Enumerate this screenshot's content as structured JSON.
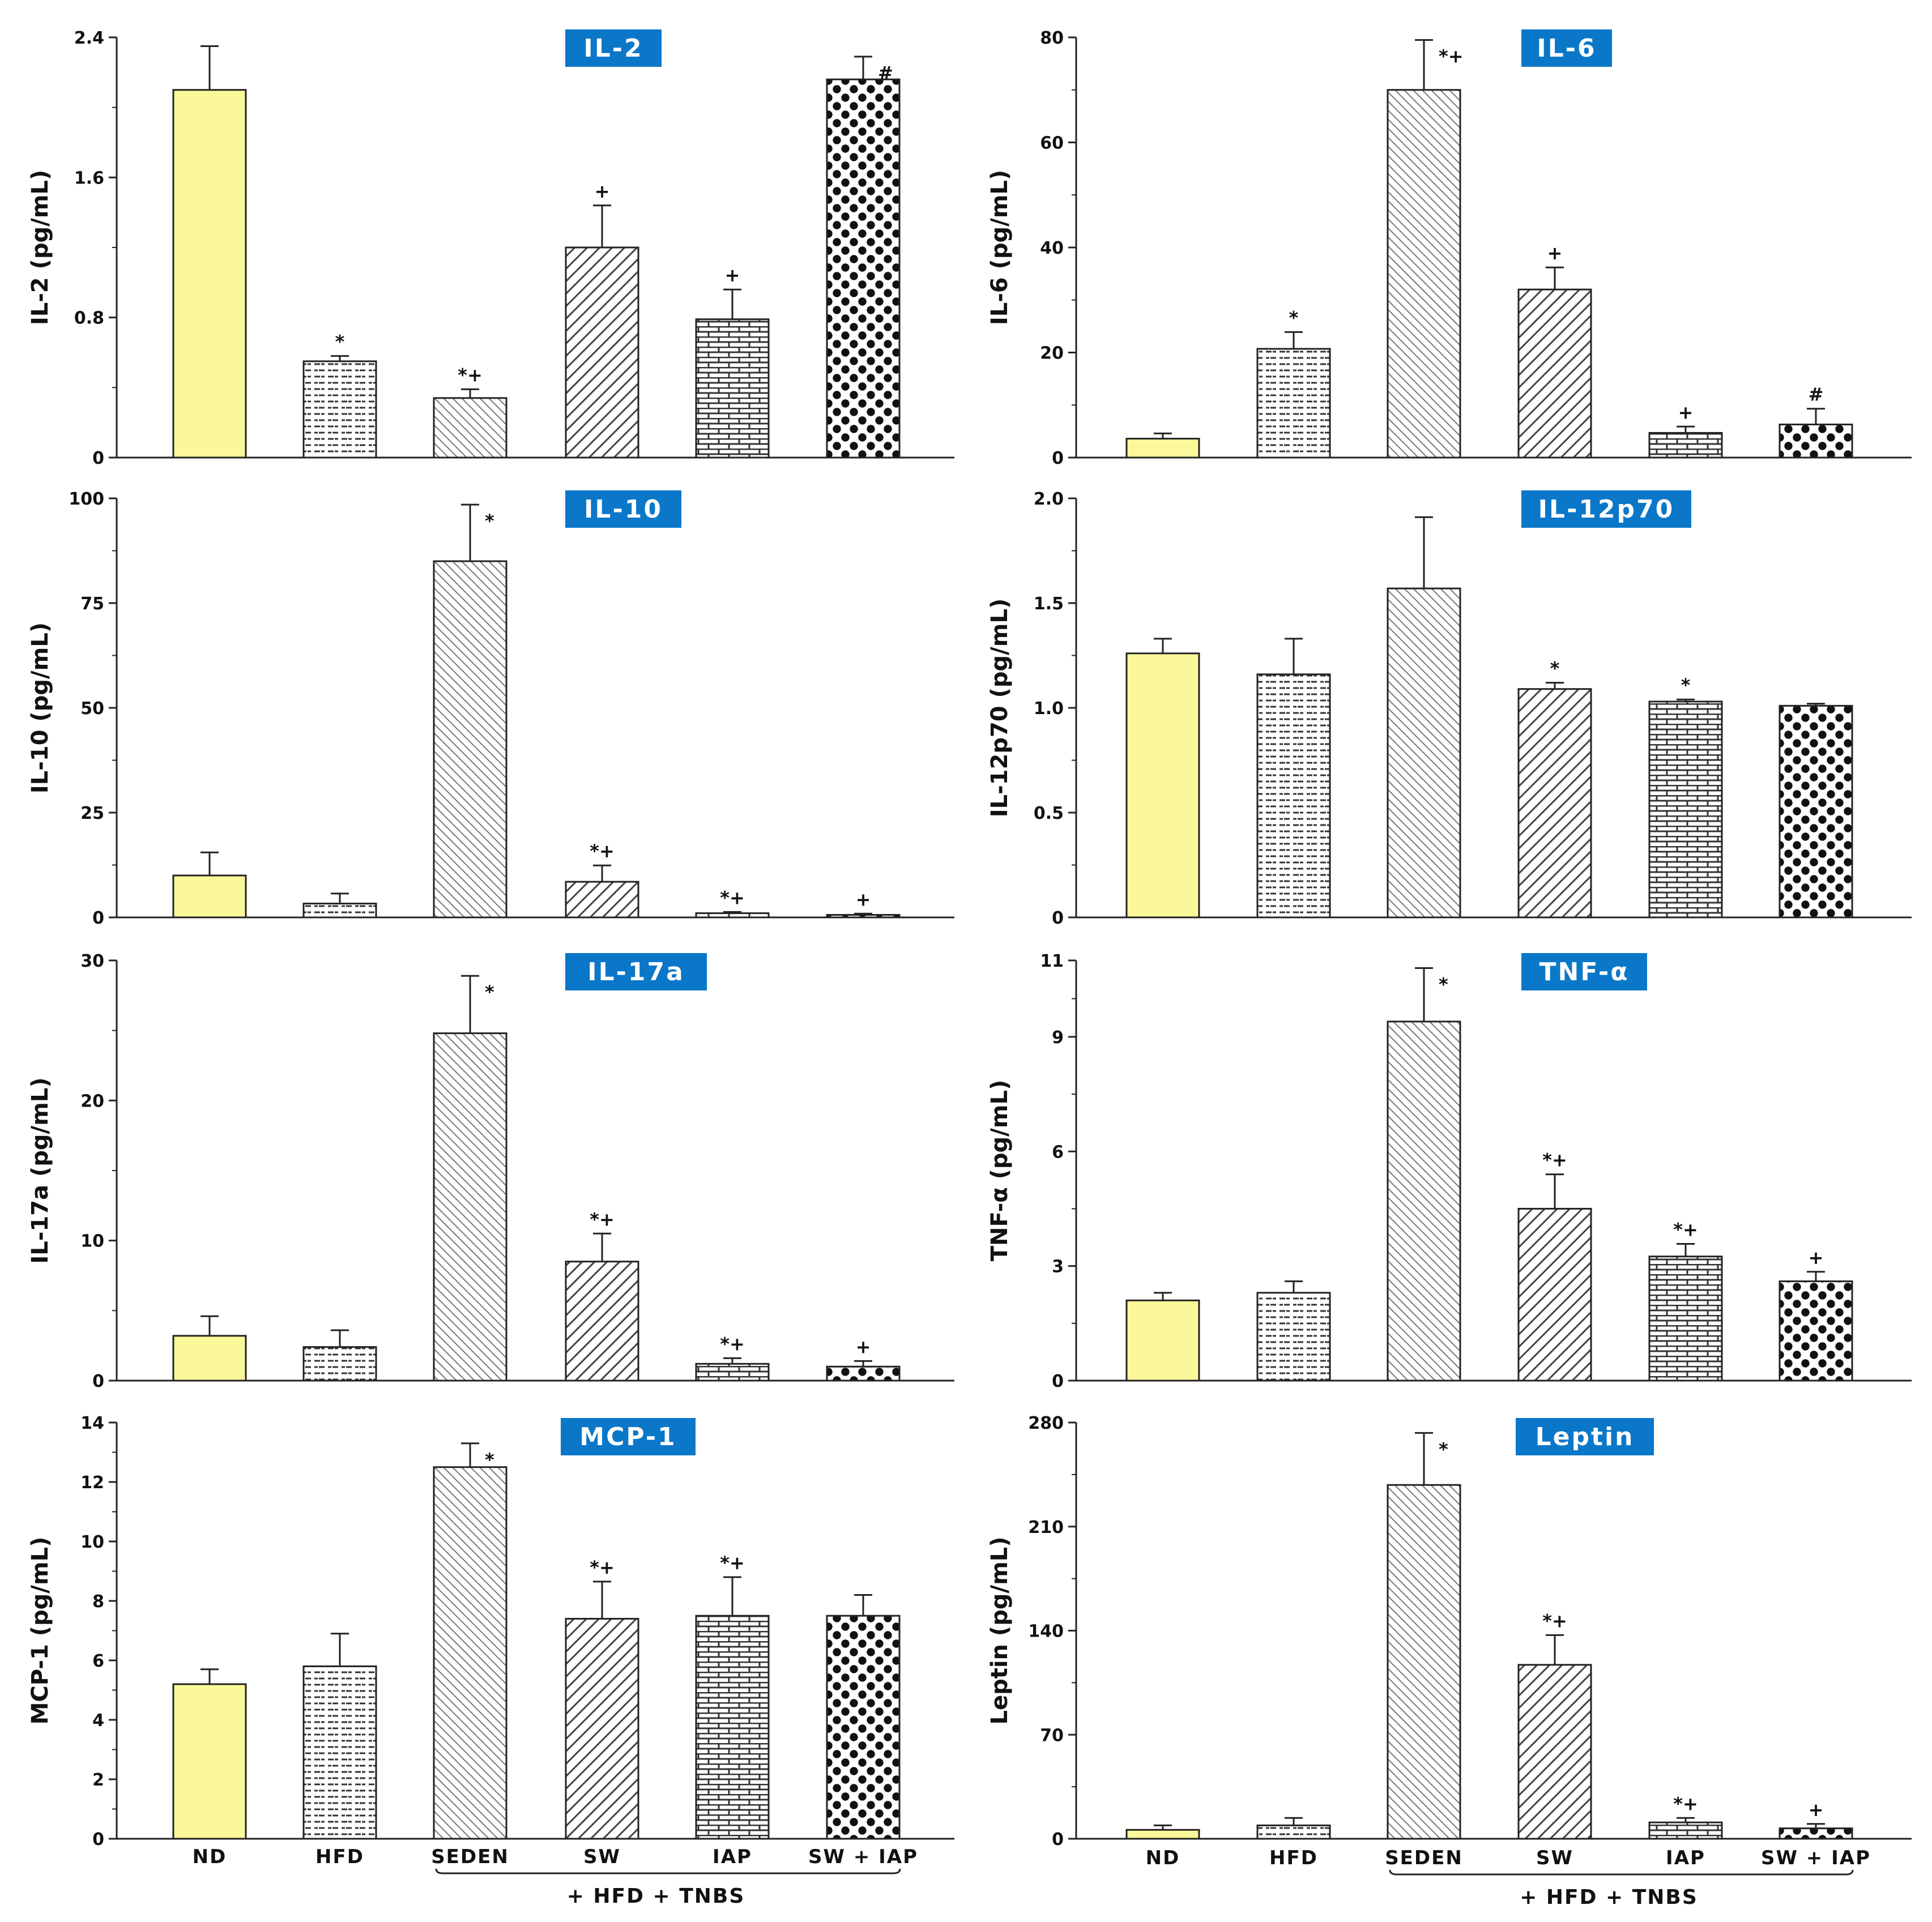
{
  "chart_data": [
    {
      "type": "bar",
      "title": "IL-2",
      "ylabel": "IL-2 (pg/mL)",
      "ylim": [
        0,
        2.4
      ],
      "yticks": [
        "0",
        "0.8",
        "1.6",
        "2.4"
      ],
      "yticks_values": [
        0,
        0.8,
        1.6,
        2.4
      ],
      "values": [
        2.1,
        0.55,
        0.34,
        1.2,
        0.79,
        2.16
      ],
      "errors": [
        0.25,
        0.03,
        0.05,
        0.24,
        0.17,
        0.13
      ],
      "significance": [
        "",
        "*",
        "*+",
        "+",
        "+",
        "#"
      ]
    },
    {
      "type": "bar",
      "title": "IL-6",
      "ylabel": "IL-6 (pg/mL)",
      "ylim": [
        0,
        80
      ],
      "yticks": [
        "0",
        "20",
        "40",
        "60",
        "80"
      ],
      "yticks_values": [
        0,
        20,
        40,
        60,
        80
      ],
      "values": [
        3.6,
        20.7,
        70,
        32,
        4.7,
        6.3
      ],
      "errors": [
        1.0,
        3.2,
        9.5,
        4.2,
        1.2,
        3.0
      ],
      "significance": [
        "",
        "*",
        "*+",
        "+",
        "+",
        "#"
      ]
    },
    {
      "type": "bar",
      "title": "IL-10",
      "ylabel": "IL-10 (pg/mL)",
      "ylim": [
        0,
        100
      ],
      "yticks": [
        "0",
        "25",
        "50",
        "75",
        "100"
      ],
      "yticks_values": [
        0,
        25,
        50,
        75,
        100
      ],
      "values": [
        10,
        3.3,
        85,
        8.5,
        1.0,
        0.6
      ],
      "errors": [
        5.5,
        2.4,
        13.5,
        3.9,
        0.3,
        0.3
      ],
      "significance": [
        "",
        "",
        "*",
        "*+",
        "*+",
        "+"
      ]
    },
    {
      "type": "bar",
      "title": "IL-12p70",
      "ylabel": "IL-12p70 (pg/mL)",
      "ylim": [
        0,
        2.0
      ],
      "yticks": [
        "0",
        "0.5",
        "1.0",
        "1.5",
        "2.0"
      ],
      "yticks_values": [
        0,
        0.5,
        1.0,
        1.5,
        2.0
      ],
      "values": [
        1.26,
        1.16,
        1.57,
        1.09,
        1.03,
        1.01
      ],
      "errors": [
        0.07,
        0.17,
        0.34,
        0.03,
        0.01,
        0.01
      ],
      "significance": [
        "",
        "",
        "",
        "*",
        "*",
        ""
      ]
    },
    {
      "type": "bar",
      "title": "IL-17a",
      "ylabel": "IL-17a (pg/mL)",
      "ylim": [
        0,
        30
      ],
      "yticks": [
        "0",
        "10",
        "20",
        "30"
      ],
      "yticks_values": [
        0,
        10,
        20,
        30
      ],
      "values": [
        3.2,
        2.4,
        24.8,
        8.5,
        1.2,
        1.0
      ],
      "errors": [
        1.4,
        1.2,
        4.1,
        2.0,
        0.4,
        0.4
      ],
      "significance": [
        "",
        "",
        "*",
        "*+",
        "*+",
        "+"
      ]
    },
    {
      "type": "bar",
      "title": "TNF-α",
      "ylabel": "TNF-α (pg/mL)",
      "ylim": [
        0,
        11
      ],
      "yticks": [
        "0",
        "3",
        "6",
        "9",
        "11"
      ],
      "yticks_values": [
        0,
        3,
        6,
        9,
        11
      ],
      "values": [
        2.1,
        2.3,
        9.4,
        4.5,
        3.25,
        2.6
      ],
      "errors": [
        0.2,
        0.3,
        1.4,
        0.9,
        0.33,
        0.25
      ],
      "significance": [
        "",
        "",
        "*",
        "*+",
        "*+",
        "+"
      ]
    },
    {
      "type": "bar",
      "title": "MCP-1",
      "ylabel": "MCP-1 (pg/mL)",
      "ylim": [
        0,
        14
      ],
      "yticks": [
        "0",
        "2",
        "4",
        "6",
        "8",
        "10",
        "12",
        "14"
      ],
      "yticks_values": [
        0,
        2,
        4,
        6,
        8,
        10,
        12,
        14
      ],
      "values": [
        5.2,
        5.8,
        12.5,
        7.4,
        7.5,
        7.5
      ],
      "errors": [
        0.5,
        1.1,
        0.8,
        1.25,
        1.3,
        0.7
      ],
      "significance": [
        "",
        "",
        "*",
        "*+",
        "*+",
        ""
      ]
    },
    {
      "type": "bar",
      "title": "Leptin",
      "ylabel": "Leptin (pg/mL)",
      "ylim": [
        0,
        280
      ],
      "yticks": [
        "0",
        "70",
        "140",
        "210",
        "280"
      ],
      "yticks_values": [
        0,
        70,
        140,
        210,
        280
      ],
      "values": [
        6,
        9,
        238,
        117,
        11,
        7
      ],
      "errors": [
        3,
        5,
        35,
        20,
        3,
        3
      ],
      "significance": [
        "",
        "",
        "*",
        "*+",
        "*+",
        "+"
      ]
    }
  ],
  "categories": [
    "ND",
    "HFD",
    "SEDEN",
    "SW",
    "IAP",
    "SW + IAP"
  ],
  "group_label": "+ HFD + TNBS",
  "colors": {
    "title_bg": "#0a77c9",
    "nd_fill": "#fbf89a",
    "bar_stroke": "#222222",
    "axis": "#222222"
  },
  "patterns": [
    "solid",
    "dashes",
    "diagonal-back",
    "diagonal-forward",
    "bricks",
    "dots"
  ]
}
